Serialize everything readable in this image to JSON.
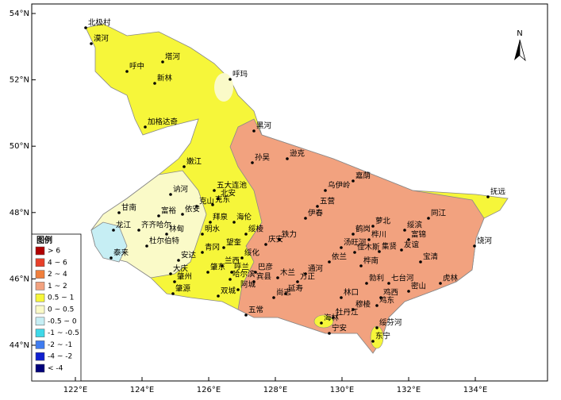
{
  "map": {
    "lat_ticks": [
      {
        "value": 54,
        "label": "54°N"
      },
      {
        "value": 52,
        "label": "52°N"
      },
      {
        "value": 50,
        "label": "50°N"
      },
      {
        "value": 48,
        "label": "48°N"
      },
      {
        "value": 46,
        "label": "46°N"
      },
      {
        "value": 44,
        "label": "44°N"
      }
    ],
    "lon_ticks": [
      {
        "value": 122,
        "label": "122°E"
      },
      {
        "value": 124,
        "label": "124°E"
      },
      {
        "value": 126,
        "label": "126°E"
      },
      {
        "value": 128,
        "label": "128°E"
      },
      {
        "value": 130,
        "label": "130°E"
      },
      {
        "value": 132,
        "label": "132°E"
      },
      {
        "value": 134,
        "label": "134°E"
      }
    ],
    "north": "N",
    "legend": {
      "title": "图例",
      "items": [
        {
          "label": "> 6",
          "color": "#b00000"
        },
        {
          "label": "4 ~ 6",
          "color": "#e8402a"
        },
        {
          "label": "2 ~ 4",
          "color": "#f07f3c"
        },
        {
          "label": "1 ~ 2",
          "color": "#f2a27f"
        },
        {
          "label": "0.5 ~ 1",
          "color": "#f6f63a"
        },
        {
          "label": "0 ~ 0.5",
          "color": "#fafac8"
        },
        {
          "label": "-0.5 ~ 0",
          "color": "#c6eef4"
        },
        {
          "label": "-1 ~ -0.5",
          "color": "#3fd8e8"
        },
        {
          "label": "-2 ~ -1",
          "color": "#3f7cf0"
        },
        {
          "label": "-4 ~ -2",
          "color": "#1020d0"
        },
        {
          "label": "< -4",
          "color": "#00007a"
        }
      ]
    },
    "places": [
      "北极村",
      "漠河",
      "塔河",
      "呼中",
      "新林",
      "呼玛",
      "加格达奇",
      "黑河",
      "孙吴",
      "逊克",
      "嘉荫",
      "嫩江",
      "讷河",
      "五大连池",
      "北安",
      "克山",
      "克东",
      "乌伊岭",
      "五营",
      "伊春",
      "甘南",
      "富裕",
      "依安",
      "拜泉",
      "海伦",
      "萝北",
      "同江",
      "抚远",
      "龙江",
      "齐齐哈尔",
      "林甸",
      "明水",
      "绥棱",
      "鹤岗",
      "绥滨",
      "泰来",
      "杜尔伯特",
      "青冈",
      "望奎",
      "庆安",
      "铁力",
      "汤旺河",
      "桦川",
      "富锦",
      "友谊",
      "饶河",
      "大庆",
      "安达",
      "兰西",
      "绥化",
      "佳木斯",
      "集贤",
      "依兰",
      "宝清",
      "桦南",
      "肇州",
      "肇源",
      "肇东",
      "呼兰",
      "巴彦",
      "哈尔滨",
      "阿城",
      "宾县",
      "木兰",
      "方正",
      "通河",
      "双城",
      "七台河",
      "勃利",
      "密山",
      "虎林",
      "尚志",
      "延寿",
      "林口",
      "鸡西",
      "鸡东",
      "五常",
      "海林",
      "牡丹江",
      "宁安",
      "绥芬河",
      "东宁",
      "穆棱"
    ]
  }
}
